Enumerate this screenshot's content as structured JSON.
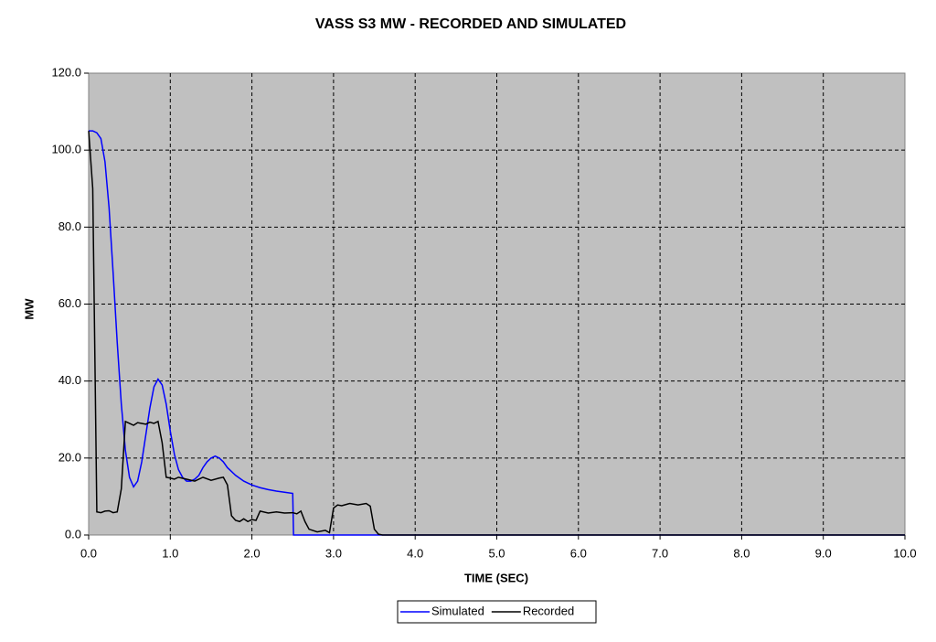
{
  "chart_data": {
    "type": "line",
    "title": "VASS S3 MW - RECORDED AND SIMULATED",
    "x_label": "TIME (SEC)",
    "y_label": "MW",
    "xlim": [
      0,
      10
    ],
    "ylim": [
      0,
      120
    ],
    "xticks": [
      {
        "value": 0,
        "label": "0.0"
      },
      {
        "value": 1,
        "label": "1.0"
      },
      {
        "value": 2,
        "label": "2.0"
      },
      {
        "value": 3,
        "label": "3.0"
      },
      {
        "value": 4,
        "label": "4.0"
      },
      {
        "value": 5,
        "label": "5.0"
      },
      {
        "value": 6,
        "label": "6.0"
      },
      {
        "value": 7,
        "label": "7.0"
      },
      {
        "value": 8,
        "label": "8.0"
      },
      {
        "value": 9,
        "label": "9.0"
      },
      {
        "value": 10,
        "label": "10.0"
      }
    ],
    "yticks": [
      {
        "value": 0,
        "label": "0.0"
      },
      {
        "value": 20,
        "label": "20.0"
      },
      {
        "value": 40,
        "label": "40.0"
      },
      {
        "value": 60,
        "label": "60.0"
      },
      {
        "value": 80,
        "label": "80.0"
      },
      {
        "value": 100,
        "label": "100.0"
      },
      {
        "value": 120,
        "label": "120.0"
      }
    ],
    "grid": true,
    "legend": "bottom",
    "series": [
      {
        "name": "Simulated",
        "color": "#0000ff",
        "x": [
          0,
          0.05,
          0.1,
          0.15,
          0.2,
          0.25,
          0.3,
          0.35,
          0.4,
          0.45,
          0.5,
          0.55,
          0.6,
          0.65,
          0.7,
          0.75,
          0.8,
          0.85,
          0.9,
          0.95,
          1.0,
          1.05,
          1.1,
          1.15,
          1.2,
          1.25,
          1.3,
          1.35,
          1.4,
          1.45,
          1.5,
          1.55,
          1.6,
          1.65,
          1.7,
          1.8,
          1.9,
          2.0,
          2.1,
          2.2,
          2.3,
          2.4,
          2.5,
          2.51,
          10
        ],
        "values": [
          105,
          105,
          104.5,
          103,
          97,
          85,
          68,
          50,
          34,
          22,
          15,
          12.5,
          14,
          19,
          26,
          33,
          38.5,
          40.5,
          39,
          34,
          27,
          21,
          17,
          15,
          14,
          14,
          14.5,
          15.5,
          17.5,
          19,
          20,
          20.5,
          20,
          19,
          17.5,
          15.5,
          14,
          13,
          12.3,
          11.8,
          11.4,
          11.1,
          10.8,
          0,
          0
        ]
      },
      {
        "name": "Recorded",
        "color": "#000000",
        "x": [
          0,
          0.05,
          0.08,
          0.1,
          0.15,
          0.2,
          0.25,
          0.3,
          0.35,
          0.4,
          0.45,
          0.5,
          0.55,
          0.6,
          0.65,
          0.7,
          0.75,
          0.8,
          0.85,
          0.9,
          0.95,
          1.0,
          1.05,
          1.1,
          1.2,
          1.3,
          1.4,
          1.5,
          1.6,
          1.65,
          1.7,
          1.75,
          1.8,
          1.85,
          1.9,
          1.95,
          2.0,
          2.05,
          2.1,
          2.2,
          2.3,
          2.4,
          2.5,
          2.55,
          2.6,
          2.65,
          2.7,
          2.8,
          2.9,
          2.95,
          3.0,
          3.05,
          3.1,
          3.2,
          3.3,
          3.4,
          3.45,
          3.5,
          3.55,
          3.6,
          10
        ],
        "values": [
          105,
          90,
          40,
          6,
          5.8,
          6.2,
          6.3,
          5.8,
          6,
          12,
          29.5,
          29,
          28.5,
          29.2,
          29,
          28.8,
          29.3,
          29,
          29.5,
          24,
          15,
          14.8,
          14.5,
          15,
          14.5,
          14,
          15,
          14.2,
          14.8,
          15,
          13,
          5,
          3.8,
          3.5,
          4.2,
          3.5,
          4,
          3.8,
          6.2,
          5.7,
          6,
          5.7,
          5.8,
          5.5,
          6.2,
          3.5,
          1.5,
          0.8,
          1.2,
          0.6,
          7,
          7.8,
          7.6,
          8.2,
          7.8,
          8.2,
          7.5,
          1.5,
          0.2,
          0,
          0
        ]
      }
    ]
  }
}
